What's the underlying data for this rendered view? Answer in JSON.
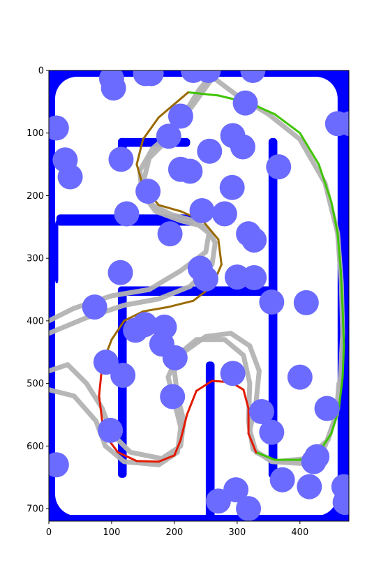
{
  "chart_data": {
    "type": "scatter",
    "title": "",
    "xlabel": "",
    "ylabel": "",
    "xlim": [
      0,
      478
    ],
    "ylim": [
      720,
      0
    ],
    "y_inverted": true,
    "x_ticks": [
      "0",
      "100",
      "200",
      "300",
      "400"
    ],
    "y_ticks": [
      "0",
      "100",
      "200",
      "300",
      "400",
      "500",
      "600",
      "700"
    ],
    "grid": false,
    "legend": "none",
    "colors": {
      "walls": "#0000ff",
      "free_space": "#ffffff",
      "obstacles": "#6b6bff",
      "trajectories": "#b3b3b3",
      "reference_path_start": "#e11a00",
      "reference_path_mid": "#9a6a00",
      "reference_path_end": "#3fc400"
    },
    "obstacles_radius": 20,
    "obstacles": [
      [
        100,
        13
      ],
      [
        103,
        28
      ],
      [
        154,
        5
      ],
      [
        163,
        5
      ],
      [
        230,
        0
      ],
      [
        254,
        0
      ],
      [
        325,
        0
      ],
      [
        313,
        52
      ],
      [
        210,
        73
      ],
      [
        12,
        92
      ],
      [
        191,
        105
      ],
      [
        293,
        104
      ],
      [
        309,
        122
      ],
      [
        256,
        129
      ],
      [
        115,
        142
      ],
      [
        26,
        143
      ],
      [
        210,
        158
      ],
      [
        225,
        161
      ],
      [
        366,
        154
      ],
      [
        34,
        170
      ],
      [
        158,
        193
      ],
      [
        292,
        187
      ],
      [
        244,
        224
      ],
      [
        124,
        229
      ],
      [
        280,
        229
      ],
      [
        193,
        261
      ],
      [
        318,
        261
      ],
      [
        327,
        271
      ],
      [
        241,
        316
      ],
      [
        114,
        323
      ],
      [
        250,
        333
      ],
      [
        300,
        330
      ],
      [
        327,
        331
      ],
      [
        355,
        370
      ],
      [
        73,
        378
      ],
      [
        410,
        371
      ],
      [
        153,
        406
      ],
      [
        184,
        410
      ],
      [
        138,
        415
      ],
      [
        180,
        437
      ],
      [
        201,
        459
      ],
      [
        91,
        466
      ],
      [
        118,
        487
      ],
      [
        293,
        484
      ],
      [
        400,
        490
      ],
      [
        197,
        521
      ],
      [
        443,
        540
      ],
      [
        339,
        545
      ],
      [
        355,
        578
      ],
      [
        98,
        575
      ],
      [
        12,
        630
      ],
      [
        427,
        617
      ],
      [
        422,
        625
      ],
      [
        372,
        654
      ],
      [
        415,
        665
      ],
      [
        470,
        665
      ],
      [
        472,
        690
      ],
      [
        298,
        670
      ],
      [
        270,
        688
      ],
      [
        318,
        700
      ],
      [
        460,
        85
      ],
      [
        480,
        85
      ]
    ],
    "reference_path": [
      [
        222,
        35
      ],
      [
        270,
        40
      ],
      [
        320,
        52
      ],
      [
        360,
        70
      ],
      [
        400,
        100
      ],
      [
        430,
        150
      ],
      [
        450,
        210
      ],
      [
        460,
        260
      ],
      [
        465,
        320
      ],
      [
        468,
        380
      ],
      [
        470,
        440
      ],
      [
        468,
        490
      ],
      [
        462,
        540
      ],
      [
        450,
        580
      ],
      [
        430,
        610
      ],
      [
        400,
        622
      ],
      [
        360,
        622
      ],
      [
        330,
        610
      ],
      [
        318,
        580
      ],
      [
        318,
        540
      ],
      [
        310,
        510
      ],
      [
        290,
        498
      ],
      [
        260,
        496
      ],
      [
        235,
        512
      ],
      [
        220,
        550
      ],
      [
        210,
        590
      ],
      [
        200,
        615
      ],
      [
        175,
        625
      ],
      [
        140,
        624
      ],
      [
        110,
        610
      ],
      [
        95,
        590
      ],
      [
        85,
        560
      ],
      [
        80,
        520
      ],
      [
        85,
        470
      ],
      [
        100,
        430
      ],
      [
        120,
        400
      ],
      [
        150,
        385
      ],
      [
        190,
        378
      ],
      [
        230,
        368
      ],
      [
        260,
        345
      ],
      [
        275,
        310
      ],
      [
        270,
        270
      ],
      [
        245,
        240
      ],
      [
        210,
        225
      ],
      [
        175,
        215
      ],
      [
        150,
        185
      ],
      [
        140,
        150
      ],
      [
        150,
        110
      ],
      [
        175,
        75
      ],
      [
        222,
        35
      ]
    ],
    "trajectories": [
      [
        [
          0,
          400
        ],
        [
          40,
          380
        ],
        [
          100,
          360
        ],
        [
          160,
          350
        ],
        [
          210,
          320
        ],
        [
          250,
          290
        ],
        [
          255,
          260
        ],
        [
          230,
          240
        ],
        [
          195,
          230
        ],
        [
          165,
          215
        ],
        [
          150,
          180
        ],
        [
          160,
          140
        ],
        [
          190,
          110
        ],
        [
          215,
          70
        ],
        [
          240,
          30
        ],
        [
          265,
          0
        ]
      ],
      [
        [
          0,
          480
        ],
        [
          30,
          470
        ],
        [
          60,
          500
        ],
        [
          85,
          540
        ],
        [
          100,
          580
        ],
        [
          130,
          610
        ],
        [
          180,
          620
        ],
        [
          210,
          600
        ],
        [
          215,
          560
        ],
        [
          205,
          520
        ],
        [
          200,
          480
        ],
        [
          215,
          450
        ],
        [
          250,
          425
        ],
        [
          290,
          420
        ],
        [
          320,
          440
        ],
        [
          335,
          480
        ],
        [
          330,
          530
        ],
        [
          320,
          575
        ],
        [
          330,
          610
        ],
        [
          360,
          625
        ],
        [
          410,
          620
        ],
        [
          445,
          590
        ],
        [
          460,
          540
        ],
        [
          465,
          480
        ],
        [
          468,
          420
        ],
        [
          466,
          340
        ],
        [
          460,
          260
        ],
        [
          440,
          180
        ],
        [
          400,
          110
        ],
        [
          350,
          70
        ],
        [
          300,
          40
        ],
        [
          260,
          10
        ]
      ],
      [
        [
          0,
          510
        ],
        [
          40,
          520
        ],
        [
          75,
          560
        ],
        [
          90,
          600
        ],
        [
          120,
          625
        ],
        [
          175,
          630
        ],
        [
          205,
          610
        ],
        [
          210,
          570
        ],
        [
          200,
          530
        ],
        [
          190,
          490
        ],
        [
          205,
          455
        ],
        [
          235,
          430
        ],
        [
          280,
          430
        ],
        [
          310,
          455
        ],
        [
          320,
          500
        ],
        [
          318,
          560
        ],
        [
          325,
          605
        ],
        [
          355,
          625
        ],
        [
          405,
          628
        ],
        [
          440,
          600
        ],
        [
          458,
          550
        ],
        [
          462,
          500
        ]
      ],
      [
        [
          0,
          420
        ],
        [
          60,
          395
        ],
        [
          120,
          375
        ],
        [
          175,
          365
        ],
        [
          225,
          345
        ],
        [
          260,
          310
        ],
        [
          265,
          275
        ],
        [
          250,
          250
        ],
        [
          210,
          240
        ],
        [
          170,
          225
        ],
        [
          148,
          195
        ],
        [
          145,
          160
        ],
        [
          165,
          125
        ],
        [
          200,
          95
        ],
        [
          230,
          55
        ],
        [
          255,
          20
        ],
        [
          270,
          0
        ]
      ]
    ]
  }
}
